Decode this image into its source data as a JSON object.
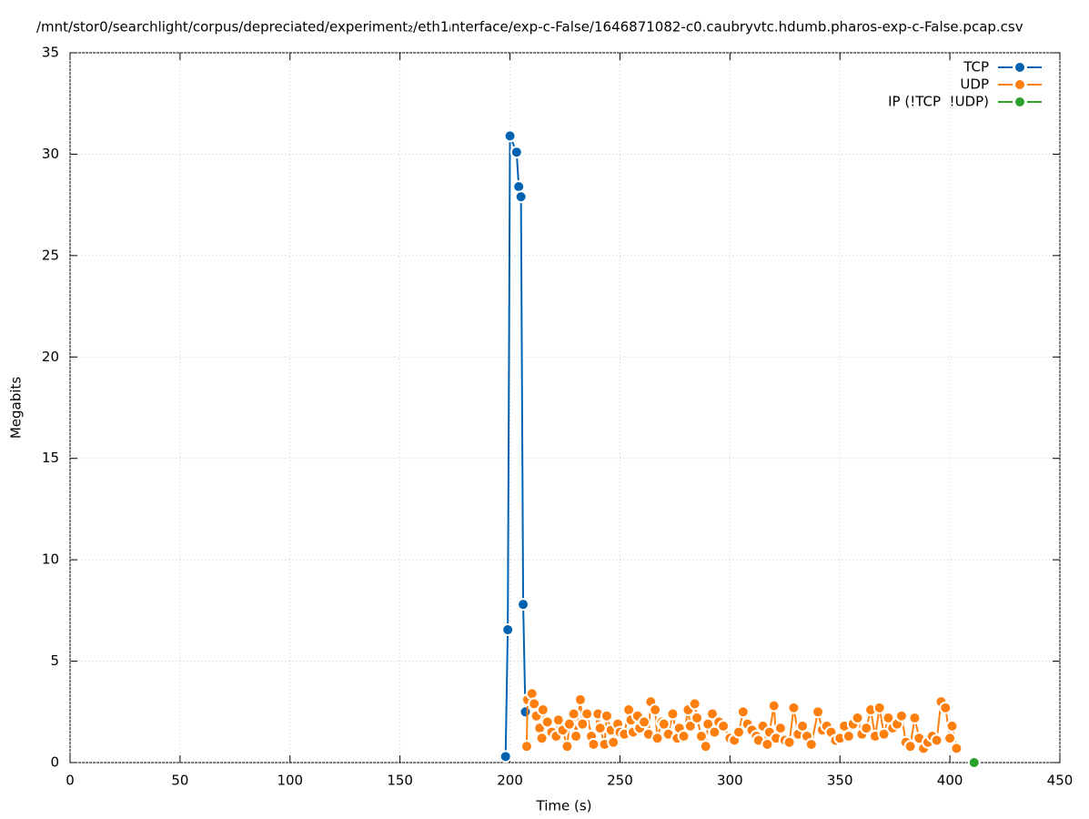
{
  "chart_data": {
    "type": "line",
    "title": "/mnt/stor0/searchlight/corpus/depreciated/experiment₂/eth1ᵢnterface/exp-c-False/1646871082-c0.caubryvtc.hdumb.pharos-exp-c-False.pcap.csv",
    "x_label": "Time (s)",
    "y_label": "Megabits",
    "xlim": [
      0,
      450
    ],
    "xticks": [
      0,
      50,
      100,
      150,
      200,
      250,
      300,
      350,
      400,
      450
    ],
    "ylim": [
      0,
      35
    ],
    "yticks": [
      0,
      5,
      10,
      15,
      20,
      25,
      30,
      35
    ],
    "grid": true,
    "legend": "top-right",
    "series": [
      {
        "name": "TCP",
        "color": "#0062b0",
        "x": [
          198,
          199,
          200,
          203,
          204,
          205,
          206,
          207
        ],
        "values": [
          0.3,
          6.55,
          30.9,
          30.1,
          28.4,
          27.9,
          7.8,
          2.5
        ]
      },
      {
        "name": "UDP",
        "color": "#ff7f0e",
        "x": [
          207.6,
          208,
          210,
          211,
          212,
          213.5,
          214.5,
          215,
          217,
          219,
          221,
          222,
          224,
          226,
          227,
          229,
          230,
          232,
          233,
          235,
          237,
          238,
          240,
          241,
          243,
          244,
          246,
          247,
          249,
          250,
          252,
          254,
          255,
          256,
          258,
          259,
          261,
          263,
          264,
          266,
          267,
          269,
          270,
          272,
          274,
          276,
          277,
          279,
          281,
          282,
          284,
          285,
          287,
          289,
          290,
          292,
          293,
          295,
          297,
          300,
          302,
          304,
          306,
          308,
          310,
          312,
          313,
          315,
          317,
          318,
          320,
          321,
          323,
          325,
          327,
          329,
          331,
          333,
          335,
          337,
          340,
          342,
          344,
          346,
          348,
          350,
          352,
          354,
          356,
          358,
          360,
          362,
          364,
          366,
          368,
          370,
          372,
          374,
          376,
          378,
          380,
          382,
          384,
          386,
          388,
          390,
          392,
          394,
          396,
          398,
          400,
          401,
          403
        ],
        "values": [
          0.8,
          3.1,
          3.4,
          2.9,
          2.3,
          1.7,
          1.2,
          2.6,
          2.0,
          1.5,
          1.3,
          2.1,
          1.6,
          0.8,
          1.9,
          2.4,
          1.3,
          3.1,
          1.9,
          2.4,
          1.3,
          0.9,
          2.4,
          1.7,
          0.9,
          2.3,
          1.6,
          1.0,
          1.9,
          1.5,
          1.4,
          2.6,
          2.1,
          1.5,
          2.3,
          1.7,
          2.0,
          1.4,
          3.0,
          2.6,
          1.2,
          2.0,
          1.9,
          1.4,
          2.4,
          1.2,
          1.7,
          1.3,
          2.6,
          1.8,
          2.9,
          2.2,
          1.3,
          0.8,
          1.9,
          2.4,
          1.5,
          2.0,
          1.8,
          1.2,
          1.1,
          1.5,
          2.5,
          1.9,
          1.6,
          1.3,
          1.1,
          1.8,
          0.9,
          1.5,
          2.8,
          1.2,
          1.7,
          1.1,
          1.0,
          2.7,
          1.4,
          1.8,
          1.3,
          0.9,
          2.5,
          1.6,
          1.8,
          1.5,
          1.1,
          1.2,
          1.8,
          1.3,
          1.9,
          2.2,
          1.4,
          1.7,
          2.6,
          1.3,
          2.7,
          1.4,
          2.2,
          1.7,
          1.9,
          2.3,
          1.0,
          0.8,
          2.2,
          1.2,
          0.7,
          1.0,
          1.3,
          1.1,
          3.0,
          2.7,
          1.2,
          1.8,
          0.7
        ]
      },
      {
        "name": "IP (!TCP  !UDP)",
        "color": "#2ca02c",
        "x": [
          411
        ],
        "values": [
          0
        ]
      }
    ]
  }
}
